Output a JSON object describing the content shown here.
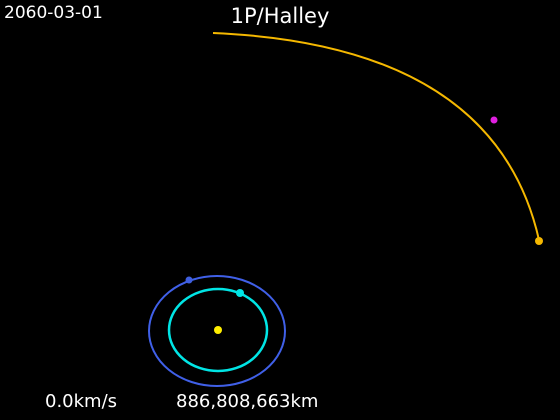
{
  "header": {
    "date": "2060-03-01",
    "title": "1P/Halley"
  },
  "footer": {
    "speed": "0.0km/s",
    "distance": "886,808,663km"
  },
  "bodies": [
    {
      "name": "sun",
      "color": "#ffee00"
    },
    {
      "name": "earth",
      "color": "#00e5e5"
    },
    {
      "name": "mars",
      "color": "#3f5fe0"
    },
    {
      "name": "halley",
      "color": "#f5b800"
    },
    {
      "name": "other-body",
      "color": "#e020e0"
    }
  ],
  "orbit_colors": {
    "earth": "#00e5e5",
    "mars": "#4060e8",
    "halley": "#f5b800"
  }
}
